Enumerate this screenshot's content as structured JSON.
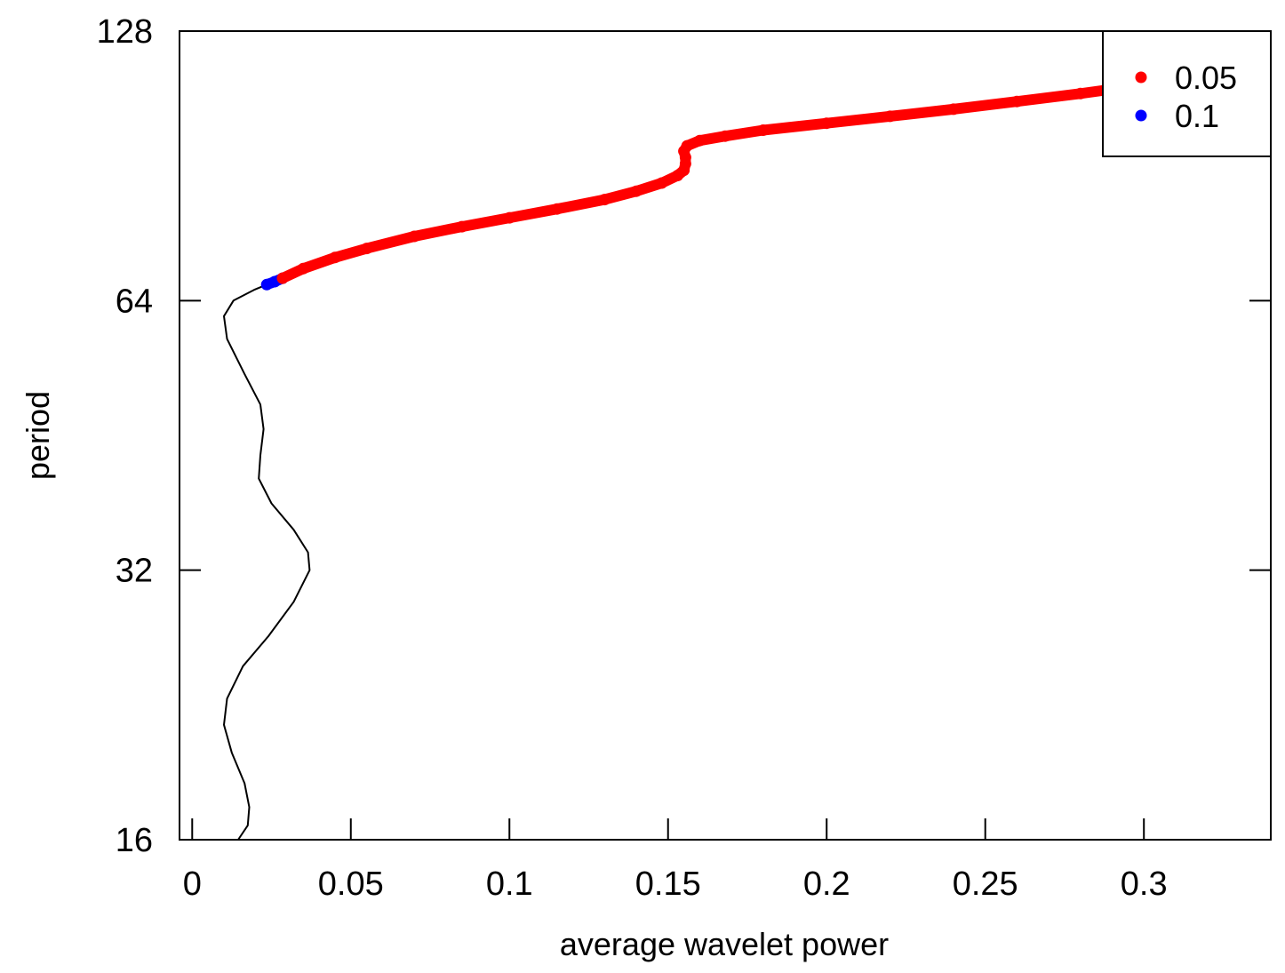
{
  "chart_data": {
    "type": "line",
    "title": "",
    "xlabel": "average wavelet power",
    "ylabel": "period",
    "xlim": [
      -0.004,
      0.34
    ],
    "ylim": [
      16,
      128
    ],
    "y_scale": "log2",
    "x_ticks": [
      0,
      0.05,
      0.1,
      0.15,
      0.2,
      0.25,
      0.3
    ],
    "x_tick_labels": [
      "0",
      "0.05",
      "0.1",
      "0.15",
      "0.2",
      "0.25",
      "0.3"
    ],
    "y_ticks": [
      16,
      32,
      64,
      128
    ],
    "y_tick_labels": [
      "16",
      "32",
      "64",
      "128"
    ],
    "grid": false,
    "legend": {
      "position": "top-right",
      "entries": [
        {
          "label": "0.05",
          "color": "#ff0000"
        },
        {
          "label": "0.1",
          "color": "#0000ff"
        }
      ]
    },
    "series": [
      {
        "style": "line",
        "color": "#000000",
        "points": [
          {
            "x": 0.0145,
            "y": 16
          },
          {
            "x": 0.0175,
            "y": 16.6
          },
          {
            "x": 0.018,
            "y": 17.4
          },
          {
            "x": 0.0165,
            "y": 18.5
          },
          {
            "x": 0.0125,
            "y": 20.0
          },
          {
            "x": 0.01,
            "y": 21.5
          },
          {
            "x": 0.011,
            "y": 23.0
          },
          {
            "x": 0.016,
            "y": 25.0
          },
          {
            "x": 0.024,
            "y": 27.0
          },
          {
            "x": 0.032,
            "y": 29.5
          },
          {
            "x": 0.037,
            "y": 32.0
          },
          {
            "x": 0.0365,
            "y": 33.5
          },
          {
            "x": 0.032,
            "y": 35.5
          },
          {
            "x": 0.025,
            "y": 38.0
          },
          {
            "x": 0.021,
            "y": 40.5
          },
          {
            "x": 0.0215,
            "y": 43.0
          },
          {
            "x": 0.0225,
            "y": 46.0
          },
          {
            "x": 0.0215,
            "y": 49.0
          },
          {
            "x": 0.0165,
            "y": 53.0
          },
          {
            "x": 0.011,
            "y": 58.0
          },
          {
            "x": 0.01,
            "y": 61.5
          },
          {
            "x": 0.013,
            "y": 64.0
          },
          {
            "x": 0.0195,
            "y": 65.8
          },
          {
            "x": 0.0235,
            "y": 66.7
          }
        ]
      },
      {
        "name": "0.1",
        "style": "points",
        "color": "#0000ff",
        "points": [
          {
            "x": 0.0235,
            "y": 66.7
          },
          {
            "x": 0.026,
            "y": 67.2
          },
          {
            "x": 0.0285,
            "y": 67.8
          }
        ]
      },
      {
        "name": "0.05",
        "style": "points",
        "color": "#ff0000",
        "points": [
          {
            "x": 0.0285,
            "y": 67.8
          },
          {
            "x": 0.035,
            "y": 69.5
          },
          {
            "x": 0.045,
            "y": 71.5
          },
          {
            "x": 0.055,
            "y": 73.2
          },
          {
            "x": 0.07,
            "y": 75.5
          },
          {
            "x": 0.085,
            "y": 77.4
          },
          {
            "x": 0.1,
            "y": 79.2
          },
          {
            "x": 0.115,
            "y": 81.0
          },
          {
            "x": 0.13,
            "y": 83.0
          },
          {
            "x": 0.14,
            "y": 84.8
          },
          {
            "x": 0.148,
            "y": 86.6
          },
          {
            "x": 0.153,
            "y": 88.3
          },
          {
            "x": 0.155,
            "y": 89.5
          },
          {
            "x": 0.1555,
            "y": 91.0
          },
          {
            "x": 0.1555,
            "y": 92.5
          },
          {
            "x": 0.155,
            "y": 94.0
          },
          {
            "x": 0.156,
            "y": 95.3
          },
          {
            "x": 0.16,
            "y": 96.6
          },
          {
            "x": 0.168,
            "y": 97.7
          },
          {
            "x": 0.18,
            "y": 99.2
          },
          {
            "x": 0.2,
            "y": 101.0
          },
          {
            "x": 0.22,
            "y": 102.8
          },
          {
            "x": 0.24,
            "y": 104.7
          },
          {
            "x": 0.26,
            "y": 106.8
          },
          {
            "x": 0.28,
            "y": 109.0
          },
          {
            "x": 0.3,
            "y": 111.5
          },
          {
            "x": 0.315,
            "y": 114.0
          },
          {
            "x": 0.325,
            "y": 117.0
          },
          {
            "x": 0.329,
            "y": 120.0
          }
        ]
      }
    ]
  }
}
